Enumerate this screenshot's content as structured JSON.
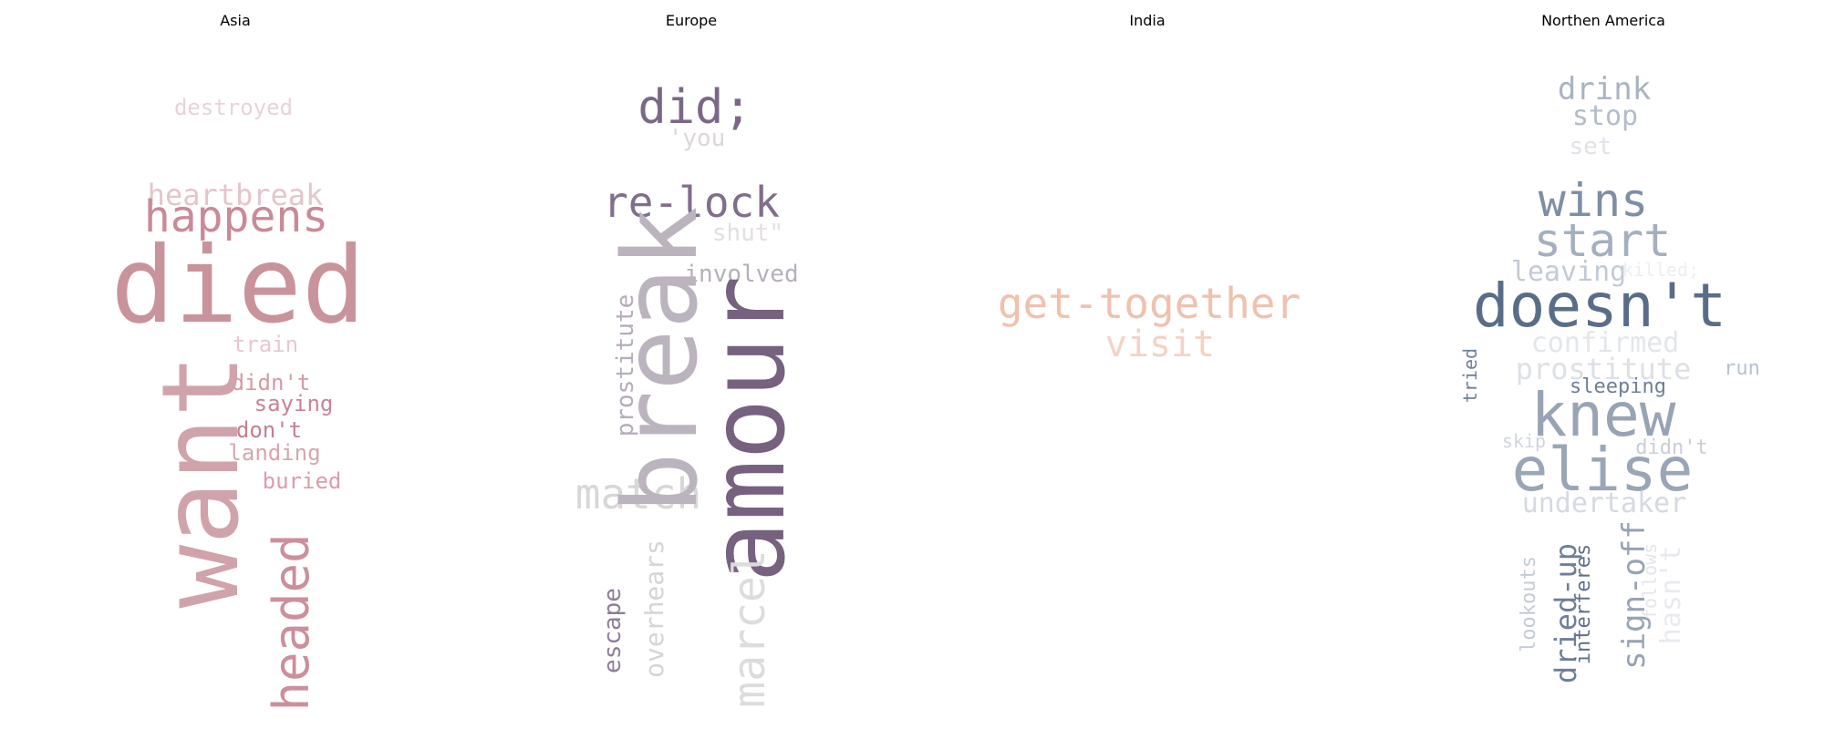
{
  "chart_data": [
    {
      "type": "wordcloud",
      "title": "Asia",
      "words": [
        {
          "text": "destroyed",
          "color": "#e8d3d8",
          "orient": "h"
        },
        {
          "text": "heartbreak",
          "color": "#e4c5cc",
          "orient": "h"
        },
        {
          "text": "happens",
          "color": "#c98a97",
          "orient": "h"
        },
        {
          "text": "died",
          "color": "#c9939b",
          "orient": "h"
        },
        {
          "text": "train",
          "color": "#e6c8cf",
          "orient": "h"
        },
        {
          "text": "didn't",
          "color": "#d39aa6",
          "orient": "h"
        },
        {
          "text": "saying",
          "color": "#c98395",
          "orient": "h"
        },
        {
          "text": "don't",
          "color": "#c47f8f",
          "orient": "h"
        },
        {
          "text": "landing",
          "color": "#d7a5ae",
          "orient": "h"
        },
        {
          "text": "buried",
          "color": "#d99ea9",
          "orient": "h"
        },
        {
          "text": "want",
          "color": "#d0a3aa",
          "orient": "v"
        },
        {
          "text": "headed",
          "color": "#cc8f9c",
          "orient": "v"
        }
      ]
    },
    {
      "type": "wordcloud",
      "title": "Europe",
      "words": [
        {
          "text": "did;",
          "color": "#7b6886",
          "orient": "h"
        },
        {
          "text": "'you",
          "color": "#dcd6dc",
          "orient": "h"
        },
        {
          "text": "re-lock",
          "color": "#816d8c",
          "orient": "h"
        },
        {
          "text": "shut\"",
          "color": "#e3dfe3",
          "orient": "h"
        },
        {
          "text": "involved",
          "color": "#b7aebb",
          "orient": "h"
        },
        {
          "text": "match",
          "color": "#d9d6d9",
          "orient": "h"
        },
        {
          "text": "break",
          "color": "#bbb3be",
          "orient": "v"
        },
        {
          "text": "amour",
          "color": "#76627f",
          "orient": "v"
        },
        {
          "text": "prostitute",
          "color": "#b6acba",
          "orient": "v"
        },
        {
          "text": "escape",
          "color": "#8f7d9a",
          "orient": "v"
        },
        {
          "text": "overhears",
          "color": "#d7d3d7",
          "orient": "v"
        },
        {
          "text": "marcel",
          "color": "#dedbde",
          "orient": "v"
        }
      ]
    },
    {
      "type": "wordcloud",
      "title": "India",
      "words": [
        {
          "text": "get-together",
          "color": "#eec2ae",
          "orient": "h"
        },
        {
          "text": "visit",
          "color": "#f2d3c4",
          "orient": "h"
        }
      ]
    },
    {
      "type": "wordcloud",
      "title": "Northen America",
      "words": [
        {
          "text": "drink",
          "color": "#a9b3c2",
          "orient": "h"
        },
        {
          "text": "stop",
          "color": "#b3bcc9",
          "orient": "h"
        },
        {
          "text": "set",
          "color": "#dfe3e8",
          "orient": "h"
        },
        {
          "text": "wins",
          "color": "#7e8ea3",
          "orient": "h"
        },
        {
          "text": "start",
          "color": "#a4afbf",
          "orient": "h"
        },
        {
          "text": "leaving",
          "color": "#c3cad5",
          "orient": "h"
        },
        {
          "text": "killed;",
          "color": "#eceff2",
          "orient": "h"
        },
        {
          "text": "doesn't",
          "color": "#5a6d88",
          "orient": "h"
        },
        {
          "text": "confirmed",
          "color": "#e3e6ea",
          "orient": "h"
        },
        {
          "text": "prostitute",
          "color": "#dde1e6",
          "orient": "h"
        },
        {
          "text": "run",
          "color": "#b9c1cd",
          "orient": "h"
        },
        {
          "text": "sleeping",
          "color": "#6e7f98",
          "orient": "h"
        },
        {
          "text": "knew",
          "color": "#98a4b5",
          "orient": "h"
        },
        {
          "text": "skip",
          "color": "#d0d5dd",
          "orient": "h"
        },
        {
          "text": "didn't",
          "color": "#c8ced8",
          "orient": "h"
        },
        {
          "text": "elise",
          "color": "#9aa6b7",
          "orient": "h"
        },
        {
          "text": "undertaker",
          "color": "#d5dae1",
          "orient": "h"
        },
        {
          "text": "tried",
          "color": "#6e7f98",
          "orient": "v"
        },
        {
          "text": "lookouts",
          "color": "#c6ccd6",
          "orient": "v"
        },
        {
          "text": "dried-up",
          "color": "#6e7f98",
          "orient": "v"
        },
        {
          "text": "interferes",
          "color": "#5f7089",
          "orient": "v"
        },
        {
          "text": "sign-off",
          "color": "#97a3b4",
          "orient": "v"
        },
        {
          "text": "follows",
          "color": "#e3e6ea",
          "orient": "v"
        },
        {
          "text": "hasn't",
          "color": "#e8eaee",
          "orient": "v"
        }
      ]
    }
  ]
}
